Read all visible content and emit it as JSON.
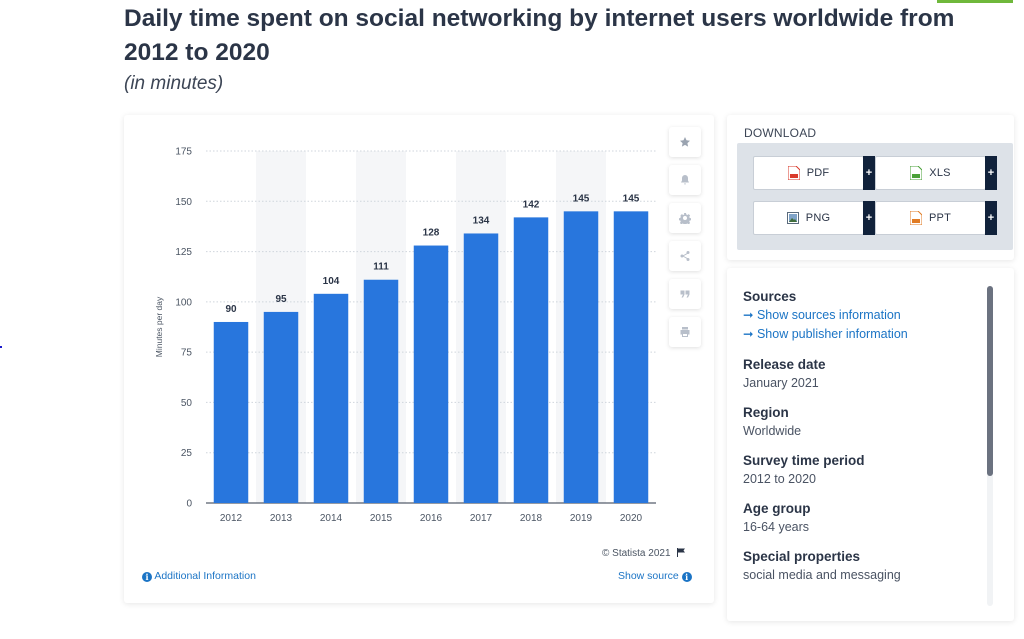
{
  "page": {
    "title": "Daily time spent on social networking by internet users worldwide from 2012 to 2020",
    "subtitle": "(in minutes)"
  },
  "chart_data": {
    "type": "bar",
    "title": "Daily time spent on social networking by internet users worldwide from 2012 to 2020",
    "subtitle": "(in minutes)",
    "categories": [
      "2012",
      "2013",
      "2014",
      "2015",
      "2016",
      "2017",
      "2018",
      "2019",
      "2020"
    ],
    "values": [
      90,
      95,
      104,
      111,
      128,
      134,
      142,
      145,
      145
    ],
    "value_labels": [
      "90",
      "95",
      "104",
      "111",
      "128",
      "134",
      "142",
      "145",
      "145"
    ],
    "xlabel": "",
    "ylabel": "Minutes per day",
    "ylim": [
      0,
      175
    ],
    "yticks": [
      0,
      25,
      50,
      75,
      100,
      125,
      150,
      175
    ],
    "ytick_labels": [
      "0",
      "25",
      "50",
      "75",
      "100",
      "125",
      "150",
      "175"
    ],
    "grid": true,
    "bar_color": "#2876dd",
    "band_color": "#f5f6f8"
  },
  "chart_footer": {
    "copyright": "© Statista 2021",
    "additional_info": "Additional Information",
    "show_source": "Show source"
  },
  "toolbar": {
    "icons": [
      "star-icon",
      "bell-icon",
      "gear-icon",
      "share-icon",
      "quote-icon",
      "print-icon"
    ]
  },
  "download": {
    "title": "DOWNLOAD",
    "buttons": [
      {
        "label": "PDF",
        "icon": "pdf-file-icon",
        "color": "#d93a2b"
      },
      {
        "label": "XLS",
        "icon": "xls-file-icon",
        "color": "#4aa138"
      },
      {
        "label": "PNG",
        "icon": "png-file-icon",
        "color": "#5a6b7d"
      },
      {
        "label": "PPT",
        "icon": "ppt-file-icon",
        "color": "#e07b24"
      }
    ],
    "plus": "+"
  },
  "info": {
    "sources_label": "Sources",
    "sources_link": "➞ Show sources information",
    "publisher_link": "➞ Show publisher information",
    "release_label": "Release date",
    "release_value": "January 2021",
    "region_label": "Region",
    "region_value": "Worldwide",
    "period_label": "Survey time period",
    "period_value": "2012 to 2020",
    "age_label": "Age group",
    "age_value": "16-64 years",
    "special_label": "Special properties",
    "special_value": "social media and messaging"
  },
  "colors": {
    "accent": "#1b74c5",
    "bar": "#2876dd",
    "dark": "#11223b",
    "top_accent": "#6fb83b"
  }
}
